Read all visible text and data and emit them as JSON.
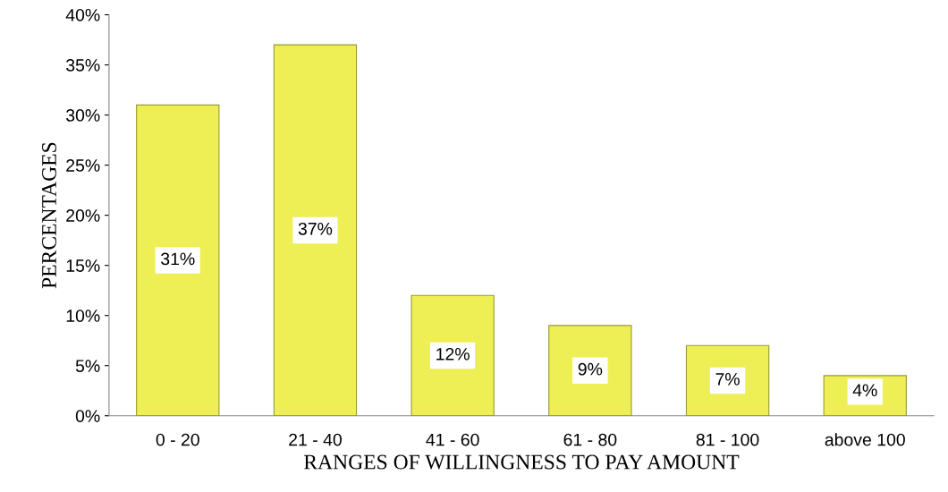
{
  "chart_data": {
    "type": "bar",
    "xlabel": "RANGES OF WILLINGNESS TO PAY AMOUNT",
    "ylabel": "PERCENTAGES",
    "categories": [
      "0 - 20",
      "21 - 40",
      "41 - 60",
      "61 - 80",
      "81 - 100",
      "above 100"
    ],
    "values": [
      31,
      37,
      12,
      9,
      7,
      4
    ],
    "value_labels": [
      "31%",
      "37%",
      "12%",
      "9%",
      "7%",
      "4%"
    ],
    "color": "#eeee55",
    "ylim": [
      0,
      40
    ],
    "yticks": [
      {
        "value": 0,
        "label": "0%"
      },
      {
        "value": 5,
        "label": "5%"
      },
      {
        "value": 10,
        "label": "10%"
      },
      {
        "value": 15,
        "label": "15%"
      },
      {
        "value": 20,
        "label": "20%"
      },
      {
        "value": 25,
        "label": "25%"
      },
      {
        "value": 30,
        "label": "30%"
      },
      {
        "value": 35,
        "label": "35%"
      },
      {
        "value": 40,
        "label": "40%"
      }
    ],
    "grid": false,
    "legend": false
  }
}
